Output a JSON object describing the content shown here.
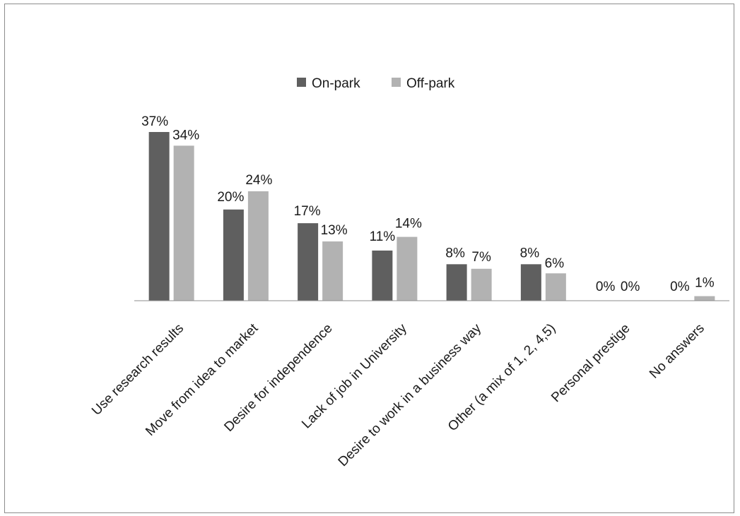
{
  "chart_data": {
    "type": "bar",
    "categories": [
      "Use research results",
      "Move from idea to market",
      "Desire for independence",
      "Lack of job in University",
      "Desire to work in a business way",
      "Other (a mix of 1, 2, 4,5)",
      "Personal prestige",
      "No answers"
    ],
    "series": [
      {
        "name": "On-park",
        "color": "#5f5f5f",
        "values": [
          37,
          20,
          17,
          11,
          8,
          8,
          0,
          0
        ],
        "labels": [
          "37%",
          "20%",
          "17%",
          "11%",
          "8%",
          "8%",
          "0%",
          "0%"
        ]
      },
      {
        "name": "Off-park",
        "color": "#b2b2b2",
        "values": [
          34,
          24,
          13,
          14,
          7,
          6,
          0,
          1
        ],
        "labels": [
          "34%",
          "24%",
          "13%",
          "14%",
          "7%",
          "6%",
          "0%",
          "1%"
        ]
      }
    ],
    "ylim": [
      0,
      40
    ],
    "value_unit": "%",
    "legend_position": "top",
    "grid": false
  }
}
